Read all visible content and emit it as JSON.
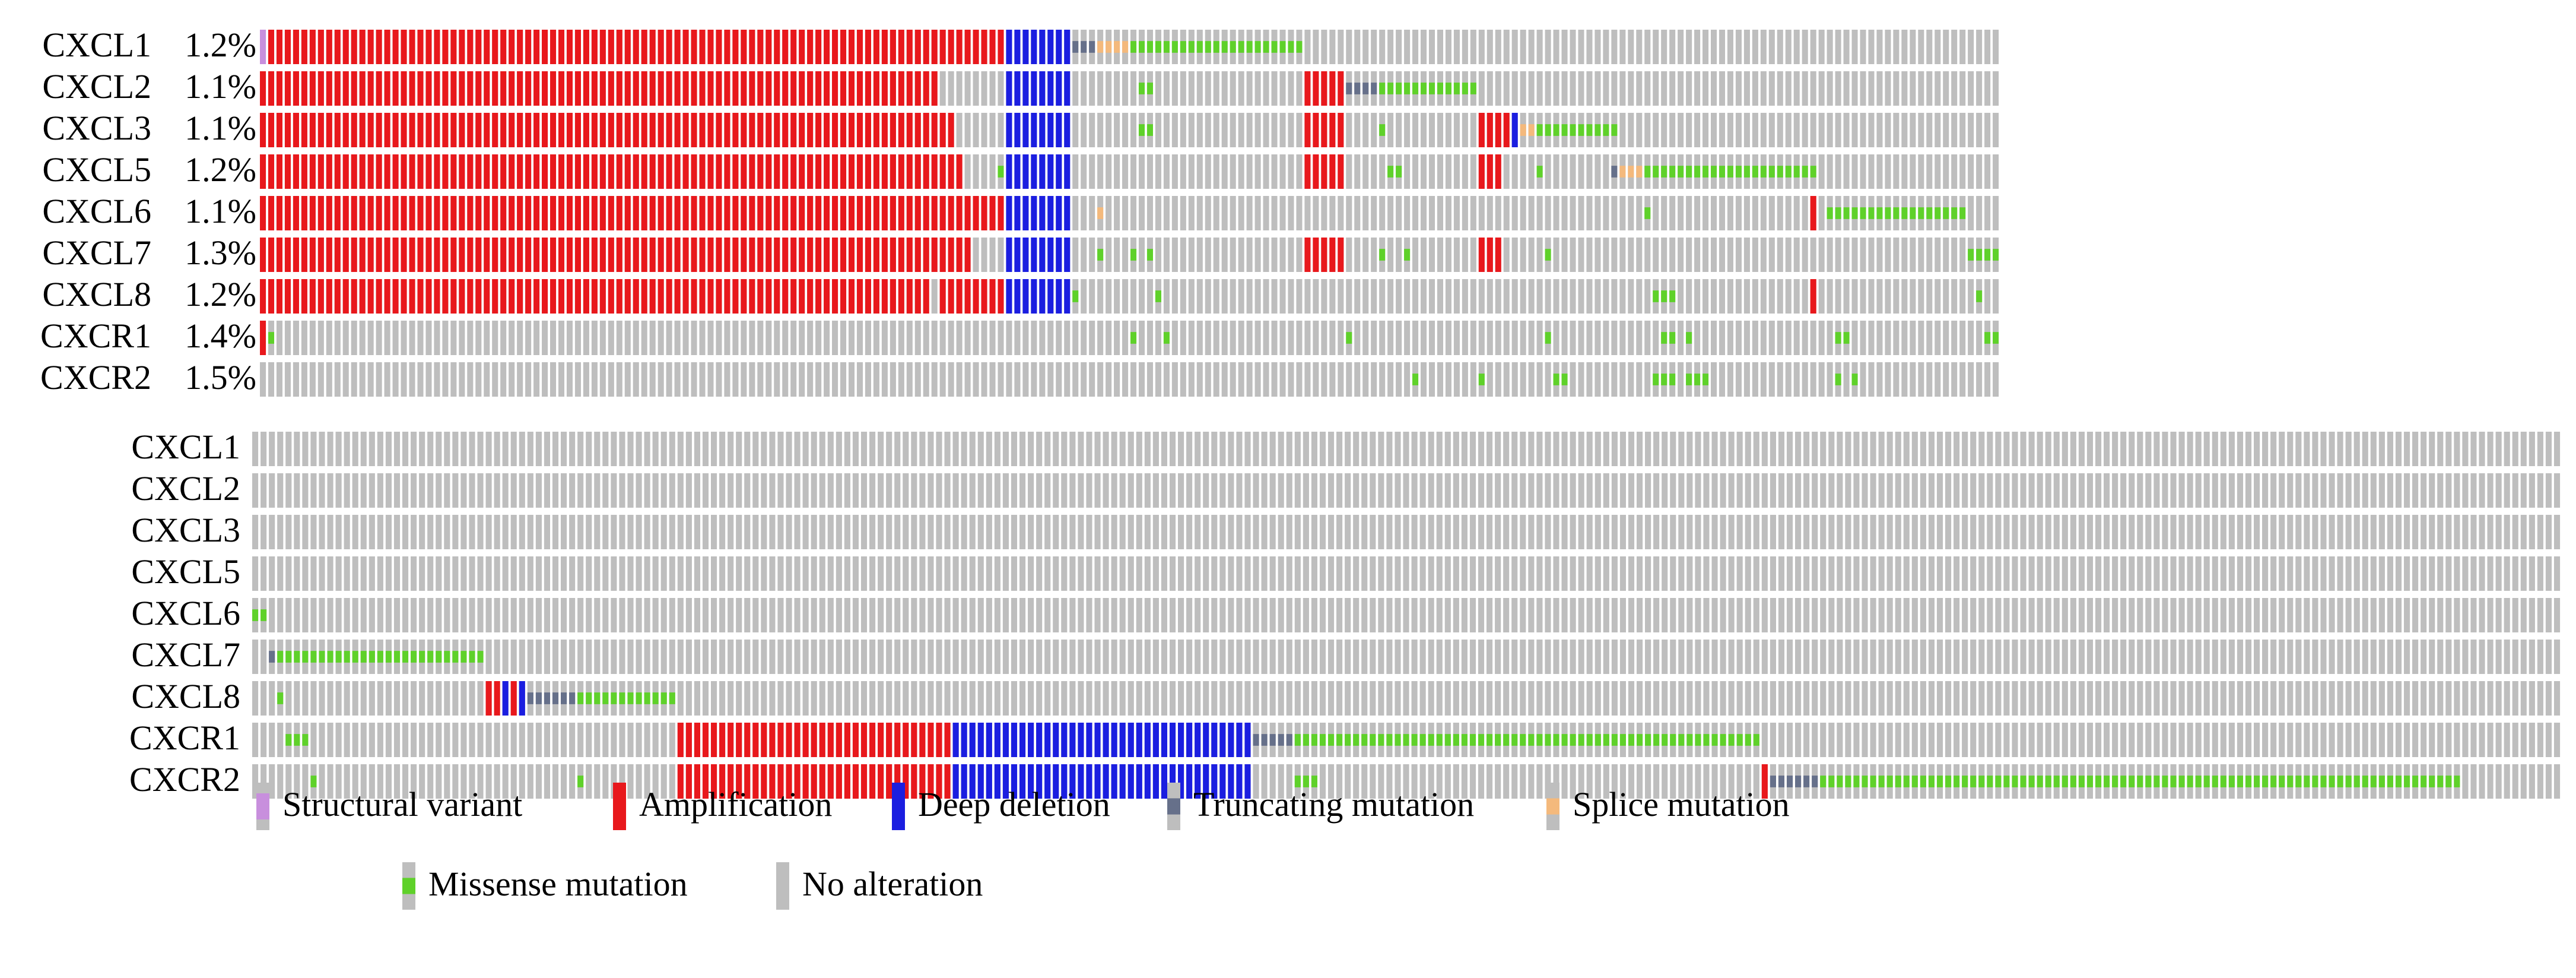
{
  "chart_data": {
    "type": "oncoprint",
    "title": "",
    "colors": {
      "no_alteration": "#bebebe",
      "amplification": "#e8181c",
      "deep_deletion": "#1b1ee0",
      "missense_mutation": "#5fd12a",
      "truncating_mutation": "#66708a",
      "splice_mutation": "#f4b97c",
      "structural_variant": "#c88fdd"
    },
    "legend": [
      {
        "key": "structural_variant",
        "label": "Structural variant",
        "color": "#c88fdd"
      },
      {
        "key": "amplification",
        "label": "Amplification",
        "color": "#e8181c"
      },
      {
        "key": "deep_deletion",
        "label": "Deep deletion",
        "color": "#1b1ee0"
      },
      {
        "key": "truncating_mutation",
        "label": "Truncating mutation",
        "color": "#66708a"
      },
      {
        "key": "splice_mutation",
        "label": "Splice mutation",
        "color": "#f4b97c"
      },
      {
        "key": "missense_mutation",
        "label": "Missense mutation",
        "color": "#5fd12a"
      },
      {
        "key": "no_alteration",
        "label": "No alteration",
        "color": "#bebebe"
      }
    ],
    "panels": [
      {
        "id": "top",
        "n_samples": 210,
        "rows": [
          {
            "gene": "CXCL1",
            "percent": "1.2%",
            "alterations": [
              {
                "type": "structural_variant",
                "start": 0,
                "end": 0
              },
              {
                "type": "amplification",
                "start": 1,
                "end": 89
              },
              {
                "type": "deep_deletion",
                "start": 90,
                "end": 97
              },
              {
                "type": "truncating_mutation",
                "start": 98,
                "end": 100
              },
              {
                "type": "splice_mutation",
                "start": 101,
                "end": 104
              },
              {
                "type": "missense_mutation",
                "start": 105,
                "end": 125
              }
            ]
          },
          {
            "gene": "CXCL2",
            "percent": "1.1%",
            "alterations": [
              {
                "type": "amplification",
                "start": 0,
                "end": 81
              },
              {
                "type": "deep_deletion",
                "start": 90,
                "end": 97
              },
              {
                "type": "missense_mutation",
                "start": 106,
                "end": 107
              },
              {
                "type": "amplification",
                "start": 126,
                "end": 130
              },
              {
                "type": "truncating_mutation",
                "start": 131,
                "end": 134
              },
              {
                "type": "missense_mutation",
                "start": 135,
                "end": 146
              }
            ]
          },
          {
            "gene": "CXCL3",
            "percent": "1.1%",
            "alterations": [
              {
                "type": "amplification",
                "start": 0,
                "end": 83
              },
              {
                "type": "deep_deletion",
                "start": 90,
                "end": 97
              },
              {
                "type": "missense_mutation",
                "start": 106,
                "end": 107
              },
              {
                "type": "amplification",
                "start": 126,
                "end": 130
              },
              {
                "type": "missense_mutation",
                "start": 135,
                "end": 135
              },
              {
                "type": "amplification",
                "start": 147,
                "end": 150
              },
              {
                "type": "deep_deletion",
                "start": 151,
                "end": 151
              },
              {
                "type": "splice_mutation",
                "start": 152,
                "end": 153
              },
              {
                "type": "missense_mutation",
                "start": 154,
                "end": 163
              }
            ]
          },
          {
            "gene": "CXCL5",
            "percent": "1.2%",
            "alterations": [
              {
                "type": "amplification",
                "start": 0,
                "end": 84
              },
              {
                "type": "missense_mutation",
                "start": 89,
                "end": 89
              },
              {
                "type": "deep_deletion",
                "start": 90,
                "end": 97
              },
              {
                "type": "amplification",
                "start": 126,
                "end": 130
              },
              {
                "type": "missense_mutation",
                "start": 136,
                "end": 137
              },
              {
                "type": "amplification",
                "start": 147,
                "end": 149
              },
              {
                "type": "missense_mutation",
                "start": 154,
                "end": 154
              },
              {
                "type": "truncating_mutation",
                "start": 163,
                "end": 163
              },
              {
                "type": "splice_mutation",
                "start": 164,
                "end": 166
              },
              {
                "type": "missense_mutation",
                "start": 167,
                "end": 187
              }
            ]
          },
          {
            "gene": "CXCL6",
            "percent": "1.1%",
            "alterations": [
              {
                "type": "amplification",
                "start": 0,
                "end": 89
              },
              {
                "type": "deep_deletion",
                "start": 90,
                "end": 97
              },
              {
                "type": "splice_mutation",
                "start": 101,
                "end": 101
              },
              {
                "type": "missense_mutation",
                "start": 167,
                "end": 167
              },
              {
                "type": "amplification",
                "start": 187,
                "end": 187
              },
              {
                "type": "missense_mutation",
                "start": 189,
                "end": 205
              }
            ]
          },
          {
            "gene": "CXCL7",
            "percent": "1.3%",
            "alterations": [
              {
                "type": "amplification",
                "start": 0,
                "end": 85
              },
              {
                "type": "deep_deletion",
                "start": 90,
                "end": 97
              },
              {
                "type": "missense_mutation",
                "start": 101,
                "end": 101
              },
              {
                "type": "missense_mutation",
                "start": 105,
                "end": 105
              },
              {
                "type": "missense_mutation",
                "start": 107,
                "end": 107
              },
              {
                "type": "amplification",
                "start": 126,
                "end": 130
              },
              {
                "type": "missense_mutation",
                "start": 135,
                "end": 135
              },
              {
                "type": "missense_mutation",
                "start": 138,
                "end": 138
              },
              {
                "type": "amplification",
                "start": 147,
                "end": 149
              },
              {
                "type": "missense_mutation",
                "start": 155,
                "end": 155
              },
              {
                "type": "missense_mutation",
                "start": 206,
                "end": 209
              }
            ]
          },
          {
            "gene": "CXCL8",
            "percent": "1.2%",
            "alterations": [
              {
                "type": "amplification",
                "start": 0,
                "end": 80
              },
              {
                "type": "amplification",
                "start": 82,
                "end": 89
              },
              {
                "type": "deep_deletion",
                "start": 90,
                "end": 97
              },
              {
                "type": "missense_mutation",
                "start": 98,
                "end": 98
              },
              {
                "type": "missense_mutation",
                "start": 108,
                "end": 108
              },
              {
                "type": "missense_mutation",
                "start": 168,
                "end": 170
              },
              {
                "type": "amplification",
                "start": 187,
                "end": 187
              },
              {
                "type": "missense_mutation",
                "start": 207,
                "end": 207
              }
            ]
          },
          {
            "gene": "CXCR1",
            "percent": "1.4%",
            "alterations": [
              {
                "type": "amplification",
                "start": 0,
                "end": 0
              },
              {
                "type": "missense_mutation",
                "start": 1,
                "end": 1
              },
              {
                "type": "missense_mutation",
                "start": 105,
                "end": 105
              },
              {
                "type": "missense_mutation",
                "start": 109,
                "end": 109
              },
              {
                "type": "missense_mutation",
                "start": 131,
                "end": 131
              },
              {
                "type": "missense_mutation",
                "start": 155,
                "end": 155
              },
              {
                "type": "missense_mutation",
                "start": 169,
                "end": 170
              },
              {
                "type": "missense_mutation",
                "start": 172,
                "end": 172
              },
              {
                "type": "missense_mutation",
                "start": 190,
                "end": 191
              },
              {
                "type": "missense_mutation",
                "start": 208,
                "end": 209
              }
            ]
          },
          {
            "gene": "CXCR2",
            "percent": "1.5%",
            "alterations": [
              {
                "type": "missense_mutation",
                "start": 139,
                "end": 139
              },
              {
                "type": "missense_mutation",
                "start": 147,
                "end": 147
              },
              {
                "type": "missense_mutation",
                "start": 156,
                "end": 157
              },
              {
                "type": "missense_mutation",
                "start": 168,
                "end": 170
              },
              {
                "type": "missense_mutation",
                "start": 172,
                "end": 174
              },
              {
                "type": "missense_mutation",
                "start": 190,
                "end": 190
              },
              {
                "type": "missense_mutation",
                "start": 192,
                "end": 192
              }
            ]
          }
        ]
      },
      {
        "id": "bottom",
        "n_samples": 277,
        "rows": [
          {
            "gene": "CXCL1",
            "percent": "",
            "alterations": []
          },
          {
            "gene": "CXCL2",
            "percent": "",
            "alterations": []
          },
          {
            "gene": "CXCL3",
            "percent": "",
            "alterations": []
          },
          {
            "gene": "CXCL5",
            "percent": "",
            "alterations": []
          },
          {
            "gene": "CXCL6",
            "percent": "",
            "alterations": [
              {
                "type": "missense_mutation",
                "start": 0,
                "end": 1
              }
            ]
          },
          {
            "gene": "CXCL7",
            "percent": "",
            "alterations": [
              {
                "type": "truncating_mutation",
                "start": 2,
                "end": 2
              },
              {
                "type": "missense_mutation",
                "start": 3,
                "end": 27
              }
            ]
          },
          {
            "gene": "CXCL8",
            "percent": "",
            "alterations": [
              {
                "type": "missense_mutation",
                "start": 3,
                "end": 3
              },
              {
                "type": "amplification",
                "start": 28,
                "end": 29
              },
              {
                "type": "deep_deletion",
                "start": 30,
                "end": 30
              },
              {
                "type": "amplification",
                "start": 31,
                "end": 31
              },
              {
                "type": "deep_deletion",
                "start": 32,
                "end": 32
              },
              {
                "type": "truncating_mutation",
                "start": 33,
                "end": 38
              },
              {
                "type": "missense_mutation",
                "start": 39,
                "end": 50
              }
            ]
          },
          {
            "gene": "CXCR1",
            "percent": "",
            "alterations": [
              {
                "type": "missense_mutation",
                "start": 4,
                "end": 6
              },
              {
                "type": "amplification",
                "start": 51,
                "end": 83
              },
              {
                "type": "deep_deletion",
                "start": 84,
                "end": 119
              },
              {
                "type": "truncating_mutation",
                "start": 120,
                "end": 124
              },
              {
                "type": "missense_mutation",
                "start": 125,
                "end": 180
              }
            ]
          },
          {
            "gene": "CXCR2",
            "percent": "",
            "alterations": [
              {
                "type": "missense_mutation",
                "start": 7,
                "end": 7
              },
              {
                "type": "missense_mutation",
                "start": 39,
                "end": 39
              },
              {
                "type": "amplification",
                "start": 51,
                "end": 83
              },
              {
                "type": "deep_deletion",
                "start": 84,
                "end": 119
              },
              {
                "type": "missense_mutation",
                "start": 125,
                "end": 127
              },
              {
                "type": "amplification",
                "start": 181,
                "end": 181
              },
              {
                "type": "truncating_mutation",
                "start": 182,
                "end": 187
              },
              {
                "type": "missense_mutation",
                "start": 188,
                "end": 264
              }
            ]
          }
        ]
      }
    ]
  }
}
